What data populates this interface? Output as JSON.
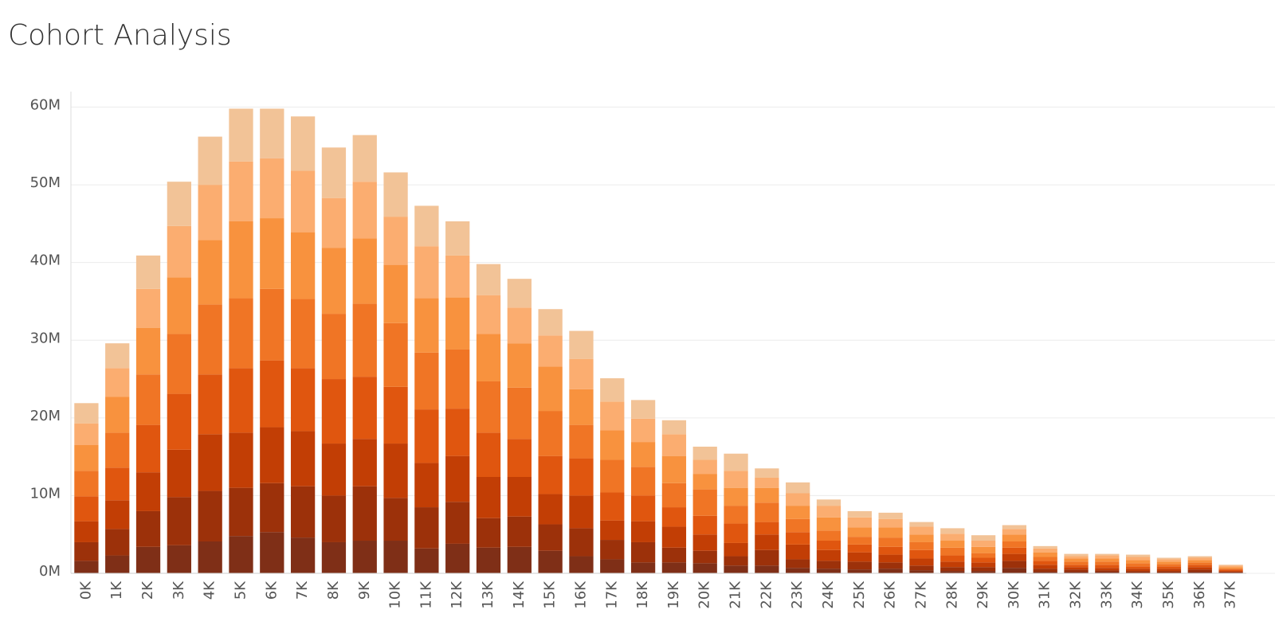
{
  "chart_data": {
    "type": "stacked_bar",
    "title": "Cohort Analysis",
    "categories": [
      "0K",
      "1K",
      "2K",
      "3K",
      "4K",
      "5K",
      "6K",
      "7K",
      "8K",
      "9K",
      "10K",
      "11K",
      "12K",
      "13K",
      "14K",
      "15K",
      "16K",
      "17K",
      "18K",
      "19K",
      "20K",
      "21K",
      "22K",
      "23K",
      "24K",
      "25K",
      "26K",
      "27K",
      "28K",
      "29K",
      "30K",
      "31K",
      "32K",
      "33K",
      "34K",
      "35K",
      "36K",
      "37K"
    ],
    "series": [
      {
        "color": "#7f2f17",
        "values": [
          1.6,
          2.3,
          3.4,
          3.6,
          4.1,
          4.8,
          5.3,
          4.6,
          4.0,
          4.2,
          4.2,
          3.2,
          3.8,
          3.3,
          3.4,
          2.9,
          2.2,
          1.8,
          1.4,
          1.4,
          1.3,
          1.0,
          1.0,
          0.7,
          0.6,
          0.5,
          0.6,
          0.4,
          0.3,
          0.3,
          0.7,
          0.2,
          0.2,
          0.2,
          0.1,
          0.1,
          0.2,
          0.1
        ]
      },
      {
        "color": "#9c310a",
        "values": [
          2.4,
          3.4,
          4.6,
          6.2,
          6.5,
          6.2,
          6.3,
          6.6,
          6.0,
          7.0,
          5.5,
          5.3,
          5.4,
          3.8,
          3.9,
          3.4,
          3.6,
          2.5,
          2.6,
          1.9,
          1.6,
          1.2,
          2.0,
          1.1,
          1.0,
          1.0,
          0.8,
          0.6,
          0.5,
          0.5,
          0.9,
          0.4,
          0.3,
          0.2,
          0.2,
          0.2,
          0.3,
          0.1
        ]
      },
      {
        "color": "#c23e05",
        "values": [
          2.7,
          3.7,
          5.0,
          6.1,
          7.3,
          7.1,
          7.2,
          7.1,
          6.7,
          6.1,
          7.0,
          5.7,
          5.9,
          5.3,
          5.1,
          3.9,
          4.2,
          2.5,
          2.7,
          2.7,
          2.1,
          1.7,
          2.0,
          1.9,
          1.4,
          1.2,
          1.0,
          0.9,
          0.7,
          0.6,
          0.9,
          0.5,
          0.3,
          0.3,
          0.3,
          0.3,
          0.3,
          0.1
        ]
      },
      {
        "color": "#e0560f",
        "values": [
          3.2,
          4.2,
          6.1,
          7.2,
          7.7,
          8.3,
          8.6,
          8.1,
          8.3,
          8.0,
          7.3,
          6.9,
          6.1,
          5.7,
          4.9,
          4.9,
          4.8,
          3.6,
          3.3,
          2.5,
          2.4,
          2.5,
          1.6,
          1.6,
          1.2,
          1.0,
          1.0,
          1.1,
          0.8,
          0.6,
          0.8,
          0.5,
          0.3,
          0.4,
          0.3,
          0.3,
          0.3,
          0.2
        ]
      },
      {
        "color": "#f07525",
        "values": [
          3.3,
          4.5,
          6.5,
          7.7,
          9.0,
          9.0,
          9.2,
          8.9,
          8.4,
          9.4,
          8.2,
          7.3,
          7.6,
          6.6,
          6.6,
          5.8,
          4.3,
          4.2,
          3.7,
          3.1,
          3.4,
          2.3,
          2.5,
          1.7,
          1.3,
          1.0,
          1.2,
          1.0,
          1.0,
          0.6,
          0.8,
          0.5,
          0.4,
          0.4,
          0.4,
          0.3,
          0.3,
          0.1
        ]
      },
      {
        "color": "#f8923e",
        "values": [
          3.3,
          4.6,
          6.0,
          7.3,
          8.3,
          9.9,
          9.1,
          8.6,
          8.5,
          8.4,
          7.5,
          7.0,
          6.7,
          6.1,
          5.7,
          5.7,
          4.6,
          3.8,
          3.2,
          3.5,
          2.0,
          2.3,
          1.9,
          1.7,
          1.7,
          1.2,
          1.3,
          1.0,
          0.9,
          0.8,
          0.9,
          0.6,
          0.4,
          0.4,
          0.4,
          0.3,
          0.3,
          0.2
        ]
      },
      {
        "color": "#fbad70",
        "values": [
          2.8,
          3.7,
          5.0,
          6.6,
          7.1,
          7.7,
          7.7,
          7.9,
          6.4,
          7.3,
          6.2,
          6.7,
          5.4,
          5.0,
          4.6,
          4.0,
          3.9,
          3.7,
          3.0,
          2.8,
          1.8,
          2.2,
          1.3,
          1.6,
          1.5,
          1.3,
          1.1,
          1.0,
          0.9,
          0.8,
          0.7,
          0.5,
          0.3,
          0.4,
          0.4,
          0.3,
          0.3,
          0.2
        ]
      },
      {
        "color": "#f2c397",
        "values": [
          2.6,
          3.2,
          4.3,
          5.7,
          6.2,
          6.8,
          6.4,
          7.0,
          6.5,
          6.0,
          5.7,
          5.2,
          4.4,
          4.0,
          3.7,
          3.4,
          3.6,
          3.0,
          2.4,
          1.8,
          1.7,
          2.2,
          1.2,
          1.4,
          0.8,
          0.8,
          0.8,
          0.6,
          0.7,
          0.7,
          0.5,
          0.3,
          0.3,
          0.2,
          0.3,
          0.2,
          0.2,
          0.1
        ]
      }
    ],
    "ylim": [
      0,
      62
    ],
    "yticks": [
      {
        "value": 0,
        "label": "0M"
      },
      {
        "value": 10,
        "label": "10M"
      },
      {
        "value": 20,
        "label": "20M"
      },
      {
        "value": 30,
        "label": "30M"
      },
      {
        "value": 40,
        "label": "40M"
      },
      {
        "value": 50,
        "label": "50M"
      },
      {
        "value": 60,
        "label": "60M"
      }
    ],
    "grid": true
  }
}
